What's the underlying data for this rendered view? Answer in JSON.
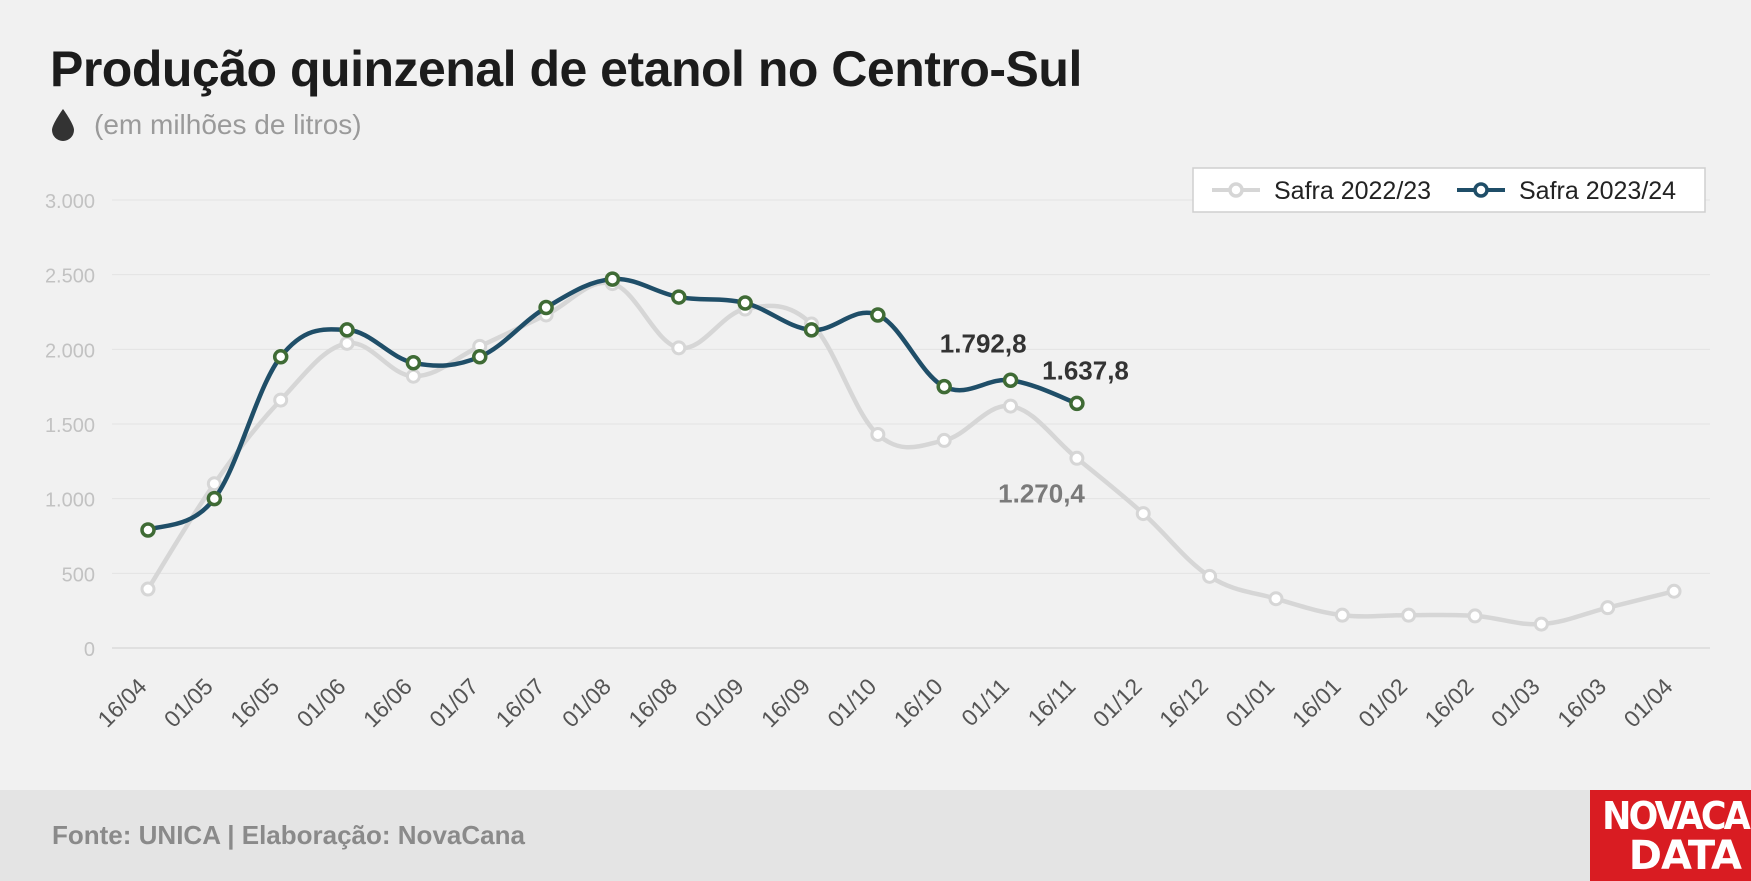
{
  "header": {
    "title": "Produção quinzenal de etanol no Centro-Sul",
    "subtitle": "(em milhões de litros)",
    "icon": "drop-icon"
  },
  "footer": {
    "source": "Fonte: UNICA | Elaboração: NovaCana",
    "logo_line1": "NOVACANA",
    "logo_line2": "DATA"
  },
  "colors": {
    "series_2022": "#d6d6d6",
    "series_2023": "#1f4e68",
    "marker_2023": "#3f6b35",
    "logo_bg": "#d91c22"
  },
  "chart_data": {
    "type": "line",
    "categories": [
      "16/04",
      "01/05",
      "16/05",
      "01/06",
      "16/06",
      "01/07",
      "16/07",
      "01/08",
      "16/08",
      "01/09",
      "16/09",
      "01/10",
      "16/10",
      "01/11",
      "16/11",
      "01/12",
      "16/12",
      "01/01",
      "16/01",
      "01/02",
      "16/02",
      "01/03",
      "16/03",
      "01/04"
    ],
    "series": [
      {
        "name": "Safra 2022/23",
        "values": [
          395,
          1100,
          1660,
          2040,
          1820,
          2020,
          2230,
          2440,
          2010,
          2270,
          2170,
          1430,
          1390,
          1620,
          1270.4,
          900,
          480,
          330,
          220,
          220,
          215,
          160,
          270,
          380
        ]
      },
      {
        "name": "Safra 2023/24",
        "values": [
          790,
          1000,
          1950,
          2130,
          1910,
          1950,
          2280,
          2470,
          2350,
          2310,
          2130,
          2230,
          1750,
          1792.8,
          1637.8,
          null,
          null,
          null,
          null,
          null,
          null,
          null,
          null,
          null
        ]
      }
    ],
    "ylim": [
      0,
      3000
    ],
    "yticks": [
      0,
      500,
      1000,
      1500,
      2000,
      2500,
      3000
    ],
    "ytick_labels": [
      "0",
      "500",
      "1.000",
      "1.500",
      "2.000",
      "2.500",
      "3.000"
    ],
    "annotations": [
      {
        "text": "1.792,8",
        "series": 1,
        "index": 13
      },
      {
        "text": "1.637,8",
        "series": 1,
        "index": 14
      },
      {
        "text": "1.270,4",
        "series": 0,
        "index": 14
      }
    ],
    "grid": true,
    "legend": "top-right"
  }
}
